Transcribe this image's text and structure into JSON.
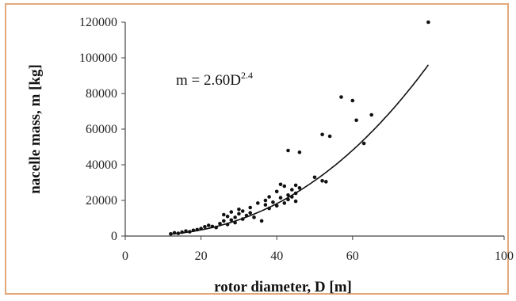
{
  "chart_data": {
    "type": "scatter",
    "xlabel": "rotor diameter, D [m]",
    "ylabel": "nacelle mass, m [kg]",
    "xlim": [
      0,
      100
    ],
    "ylim": [
      0,
      120000
    ],
    "xticks": [
      "0",
      "20",
      "40",
      "60",
      "100"
    ],
    "yticks": [
      "0",
      "20000",
      "40000",
      "60000",
      "80000",
      "100000",
      "120000"
    ],
    "annotation": {
      "base": "m = 2.60D",
      "exponent": "2.4"
    },
    "fit": {
      "coefficient": 2.6,
      "exponent": 2.4,
      "x_range": [
        12,
        80
      ]
    },
    "grid": false,
    "legend": "none",
    "series": [
      {
        "points": [
          [
            12,
            1200
          ],
          [
            13,
            1800
          ],
          [
            14,
            1500
          ],
          [
            15,
            2200
          ],
          [
            16,
            2800
          ],
          [
            17,
            2400
          ],
          [
            18,
            3200
          ],
          [
            19,
            3600
          ],
          [
            20,
            4200
          ],
          [
            21,
            5200
          ],
          [
            22,
            6000
          ],
          [
            23,
            5400
          ],
          [
            24,
            4800
          ],
          [
            25,
            7000
          ],
          [
            26,
            12000
          ],
          [
            26,
            8500
          ],
          [
            27,
            11000
          ],
          [
            27,
            6500
          ],
          [
            28,
            13500
          ],
          [
            28,
            9000
          ],
          [
            29,
            10500
          ],
          [
            29,
            7500
          ],
          [
            30,
            15000
          ],
          [
            30,
            12500
          ],
          [
            31,
            14000
          ],
          [
            31,
            9500
          ],
          [
            32,
            11500
          ],
          [
            33,
            13000
          ],
          [
            33,
            16000
          ],
          [
            34,
            10500
          ],
          [
            35,
            18500
          ],
          [
            36,
            8500
          ],
          [
            37,
            17500
          ],
          [
            37,
            20000
          ],
          [
            38,
            22000
          ],
          [
            38,
            15500
          ],
          [
            39,
            19000
          ],
          [
            40,
            17000
          ],
          [
            40,
            25000
          ],
          [
            41,
            29000
          ],
          [
            41,
            21500
          ],
          [
            42,
            18500
          ],
          [
            42,
            28000
          ],
          [
            43,
            23000
          ],
          [
            43,
            20500
          ],
          [
            43,
            48000
          ],
          [
            44,
            26000
          ],
          [
            44,
            22000
          ],
          [
            45,
            28500
          ],
          [
            45,
            24000
          ],
          [
            45,
            19500
          ],
          [
            46,
            47000
          ],
          [
            46,
            27000
          ],
          [
            50,
            33000
          ],
          [
            52,
            31000
          ],
          [
            52,
            57000
          ],
          [
            53,
            30500
          ],
          [
            54,
            56000
          ],
          [
            57,
            78000
          ],
          [
            60,
            76000
          ],
          [
            61,
            65000
          ],
          [
            63,
            52000
          ],
          [
            65,
            68000
          ],
          [
            80,
            120000
          ]
        ]
      }
    ]
  }
}
